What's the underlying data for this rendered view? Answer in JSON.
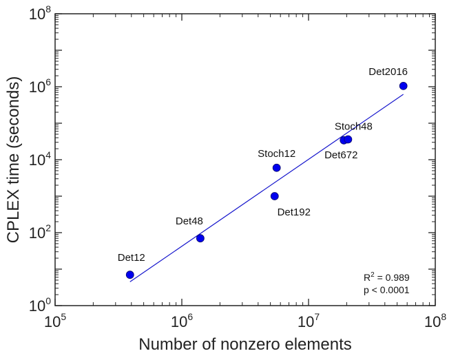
{
  "chart_data": {
    "type": "scatter",
    "xlabel": "Number of nonzero elements",
    "ylabel": "CPLEX time (seconds)",
    "x_scale": "log",
    "y_scale": "log",
    "xlim": [
      100000,
      100000000
    ],
    "ylim": [
      1,
      100000000
    ],
    "x_ticks": [
      {
        "value": 100000,
        "base": "10",
        "exp": "5"
      },
      {
        "value": 1000000,
        "base": "10",
        "exp": "6"
      },
      {
        "value": 10000000,
        "base": "10",
        "exp": "7"
      },
      {
        "value": 100000000,
        "base": "10",
        "exp": "8"
      }
    ],
    "y_ticks": [
      {
        "value": 1,
        "base": "10",
        "exp": "0"
      },
      {
        "value": 100,
        "base": "10",
        "exp": "2"
      },
      {
        "value": 10000,
        "base": "10",
        "exp": "4"
      },
      {
        "value": 1000000,
        "base": "10",
        "exp": "6"
      },
      {
        "value": 100000000,
        "base": "10",
        "exp": "8"
      }
    ],
    "points": [
      {
        "label": "Det12",
        "x": 390000,
        "y": 7
      },
      {
        "label": "Det48",
        "x": 1400000,
        "y": 70
      },
      {
        "label": "Det192",
        "x": 5400000,
        "y": 1000
      },
      {
        "label": "Stoch12",
        "x": 5600000,
        "y": 6000
      },
      {
        "label": "Det672",
        "x": 19000000,
        "y": 34000
      },
      {
        "label": "Stoch48",
        "x": 20500000,
        "y": 36000
      },
      {
        "label": "Det2016",
        "x": 56000000,
        "y": 1050000
      }
    ],
    "fit_line": {
      "x": [
        390000,
        56000000
      ],
      "y": [
        4.5,
        620000
      ]
    },
    "point_color": "#0000ee",
    "line_color": "#1515cc",
    "stats": {
      "r2_base": "R",
      "r2_exp": "2",
      "r2_rest": " = 0.989",
      "p_text": "p < 0.0001"
    }
  }
}
